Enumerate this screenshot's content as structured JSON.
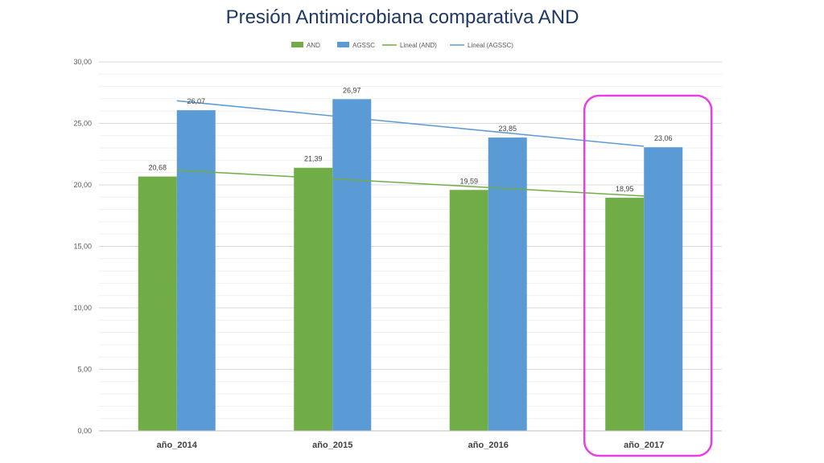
{
  "chart_data": {
    "type": "bar",
    "title": "Presión Antimicrobiana comparativa AND",
    "categories": [
      "año_2014",
      "año_2015",
      "año_2016",
      "año_2017"
    ],
    "series": [
      {
        "name": "AND",
        "color": "#70ad47",
        "values": [
          20.68,
          21.39,
          19.59,
          18.95
        ],
        "labels": [
          "20,68",
          "21,39",
          "19,59",
          "18,95"
        ]
      },
      {
        "name": "AGSSC",
        "color": "#5b9bd5",
        "values": [
          26.07,
          26.97,
          23.85,
          23.06
        ],
        "labels": [
          "26,07",
          "26,97",
          "23,85",
          "23,06"
        ]
      }
    ],
    "trendlines": [
      {
        "name": "Lineal (AND)",
        "color": "#70ad47",
        "start": 21.19,
        "end": 19.09
      },
      {
        "name": "Lineal (AGSSC)",
        "color": "#5b9bd5",
        "start": 26.84,
        "end": 23.14
      }
    ],
    "ylim": [
      0,
      30
    ],
    "yticks": [
      0,
      5,
      10,
      15,
      20,
      25,
      30
    ],
    "ytick_labels": [
      "0,00",
      "5,00",
      "10,00",
      "15,00",
      "20,00",
      "25,00",
      "30,00"
    ],
    "grid": true,
    "legend_position": "top",
    "highlight_category": "año_2017",
    "highlight_color": "#e83ee8",
    "xlabel": "",
    "ylabel": ""
  }
}
